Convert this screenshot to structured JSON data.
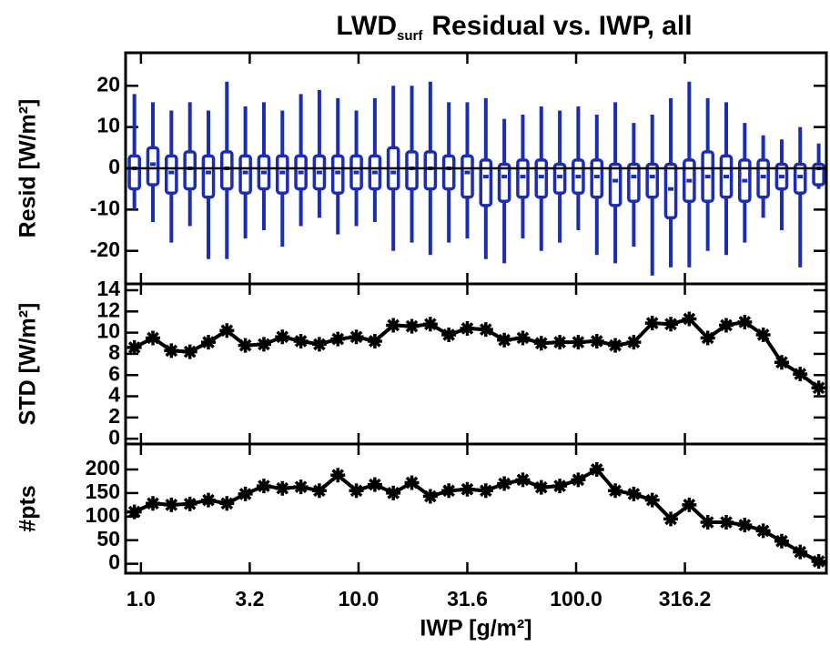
{
  "chart_data": [
    {
      "type": "box",
      "title": "LWD",
      "title_subscript": "surf",
      "title_rest": "Residual vs. IWP, all",
      "ylabel": "Resid [W/m²]",
      "color": "#1c2db5",
      "log_x": true,
      "reference_line": 0,
      "xlim": [
        0.85,
        1413
      ],
      "ylim": [
        -28,
        28
      ],
      "yticks": [
        -20,
        -10,
        0,
        10,
        20
      ],
      "x": [
        0.933,
        1.135,
        1.38,
        1.679,
        2.042,
        2.483,
        3.02,
        3.673,
        4.467,
        5.433,
        6.607,
        8.035,
        9.772,
        11.885,
        14.45,
        17.58,
        21.38,
        26.0,
        31.62,
        38.46,
        46.77,
        56.89,
        69.18,
        84.14,
        102.3,
        124.5,
        151.4,
        184.1,
        223.9,
        272.3,
        331.1,
        402.7,
        489.8,
        595.7,
        724.4,
        881.0,
        1071,
        1303
      ],
      "whisker_low": [
        -10,
        -13,
        -18,
        -14,
        -22,
        -22,
        -17,
        -15,
        -19,
        -14,
        -12,
        -16,
        -14,
        -13,
        -20,
        -18,
        -21,
        -18,
        -17,
        -22,
        -23,
        -17,
        -20,
        -18,
        -15,
        -21,
        -23,
        -19,
        -26,
        -24,
        -24,
        -20,
        -21,
        -18,
        -12,
        -15,
        -24,
        -5
      ],
      "q1": [
        -5,
        -4,
        -6,
        -5,
        -7,
        -5,
        -6,
        -5,
        -6,
        -5,
        -5,
        -6,
        -5,
        -5,
        -5,
        -5,
        -5,
        -5,
        -7,
        -9,
        -8,
        -7,
        -7,
        -6,
        -6,
        -7,
        -9,
        -8,
        -7,
        -12,
        -8,
        -8,
        -7,
        -8,
        -7,
        -5,
        -6,
        -4
      ],
      "median": [
        0,
        1,
        -1,
        0,
        -1,
        0,
        -1,
        -1,
        -1,
        -1,
        -1,
        -1,
        -1,
        -1,
        -1,
        0,
        0,
        0,
        -1,
        -2,
        -2,
        -2,
        -2,
        -2,
        -2,
        -2,
        -3,
        -2,
        -2,
        -5,
        -3,
        -2,
        -2,
        -3,
        -2,
        -2,
        -2,
        0
      ],
      "q3": [
        3,
        5,
        3,
        4,
        3,
        4,
        3,
        3,
        3,
        3,
        3,
        3,
        3,
        3,
        5,
        4,
        4,
        3,
        3,
        2,
        1,
        2,
        2,
        1,
        2,
        2,
        1,
        1,
        1,
        1,
        2,
        4,
        3,
        2,
        2,
        1,
        1,
        1
      ],
      "whisker_high": [
        18,
        16,
        14,
        16,
        14,
        21,
        15,
        16,
        14,
        18,
        19,
        17,
        14,
        17,
        20,
        20,
        21,
        16,
        16,
        17,
        12,
        13,
        15,
        14,
        15,
        13,
        16,
        11,
        13,
        17,
        21,
        17,
        16,
        11,
        8,
        7,
        10,
        6
      ]
    },
    {
      "type": "line",
      "ylabel": "STD [W/m²]",
      "color": "#000000",
      "log_x": true,
      "marker": "asterisk",
      "xlim": [
        0.85,
        1413
      ],
      "ylim": [
        -0.5,
        14.6
      ],
      "yticks": [
        0,
        2,
        4,
        6,
        8,
        10,
        12,
        14
      ],
      "x": [
        0.933,
        1.135,
        1.38,
        1.679,
        2.042,
        2.483,
        3.02,
        3.673,
        4.467,
        5.433,
        6.607,
        8.035,
        9.772,
        11.885,
        14.45,
        17.58,
        21.38,
        26.0,
        31.62,
        38.46,
        46.77,
        56.89,
        69.18,
        84.14,
        102.3,
        124.5,
        151.4,
        184.1,
        223.9,
        272.3,
        331.1,
        402.7,
        489.8,
        595.7,
        724.4,
        881.0,
        1071,
        1303
      ],
      "values": [
        8.6,
        9.5,
        8.3,
        8.2,
        9.1,
        10.2,
        8.8,
        8.9,
        9.6,
        9.2,
        8.9,
        9.4,
        9.6,
        9.2,
        10.7,
        10.6,
        10.8,
        9.8,
        10.4,
        10.3,
        9.3,
        9.5,
        9.0,
        9.1,
        9.1,
        9.2,
        8.8,
        9.1,
        10.9,
        10.8,
        11.3,
        9.5,
        10.7,
        11.0,
        9.8,
        7.2,
        6.1,
        4.8
      ]
    },
    {
      "type": "line",
      "ylabel": "#pts",
      "xlabel": "IWP [g/m²]",
      "color": "#000000",
      "log_x": true,
      "marker": "asterisk",
      "xlim": [
        0.85,
        1413
      ],
      "ylim": [
        -20,
        254
      ],
      "yticks": [
        0,
        50,
        100,
        150,
        200
      ],
      "xticks": [
        {
          "value": 1,
          "label": "1.0"
        },
        {
          "value": 3.16228,
          "label": "3.2"
        },
        {
          "value": 10,
          "label": "10.0"
        },
        {
          "value": 31.6228,
          "label": "31.6"
        },
        {
          "value": 100,
          "label": "100.0"
        },
        {
          "value": 316.228,
          "label": "316.2"
        }
      ],
      "x": [
        0.933,
        1.135,
        1.38,
        1.679,
        2.042,
        2.483,
        3.02,
        3.673,
        4.467,
        5.433,
        6.607,
        8.035,
        9.772,
        11.885,
        14.45,
        17.58,
        21.38,
        26.0,
        31.62,
        38.46,
        46.77,
        56.89,
        69.18,
        84.14,
        102.3,
        124.5,
        151.4,
        184.1,
        223.9,
        272.3,
        331.1,
        402.7,
        489.8,
        595.7,
        724.4,
        881.0,
        1071,
        1303
      ],
      "values": [
        110,
        128,
        125,
        127,
        135,
        128,
        148,
        165,
        160,
        163,
        155,
        188,
        155,
        168,
        150,
        172,
        143,
        155,
        158,
        155,
        170,
        178,
        162,
        165,
        178,
        200,
        155,
        148,
        135,
        95,
        125,
        88,
        88,
        82,
        70,
        48,
        25,
        5
      ]
    }
  ]
}
